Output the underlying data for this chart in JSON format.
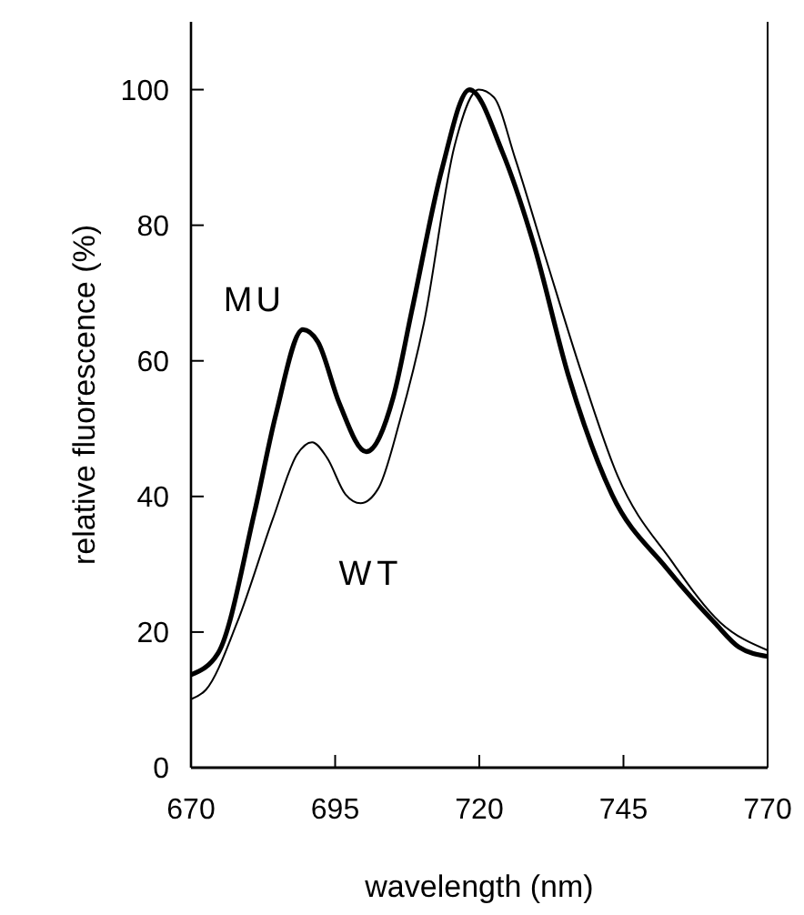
{
  "chart_data": {
    "type": "line",
    "xlabel": "wavelength (nm)",
    "ylabel": "relative fluorescence (%)",
    "xlim": [
      670,
      770
    ],
    "ylim": [
      0,
      110
    ],
    "xticks": [
      670,
      695,
      720,
      745,
      770
    ],
    "yticks": [
      0,
      20,
      40,
      60,
      80,
      100
    ],
    "grid": false,
    "marker": "none",
    "line_style": "solid",
    "series": [
      {
        "name": "MU",
        "color": "#000000",
        "x": [
          670,
          674.7,
          681,
          684.7,
          689.4,
          692,
          695.7,
          700.4,
          705.1,
          708.3,
          713.5,
          718.3,
          724,
          729.4,
          735.6,
          743,
          752.4,
          760.8,
          765,
          770
        ],
        "values": [
          13.7,
          16.9,
          37.6,
          52,
          64.6,
          62.8,
          53.8,
          46.6,
          54.7,
          67.4,
          88.2,
          100,
          90.8,
          77.3,
          57.4,
          40.3,
          29.5,
          21.4,
          17.8,
          16.4
        ]
      },
      {
        "name": "WT",
        "color": "#000000",
        "x": [
          670,
          672.6,
          678,
          684.2,
          688.4,
          691,
          693.6,
          696.8,
          699.4,
          702.5,
          706.2,
          710.4,
          715.7,
          719.9,
          722.5,
          726.2,
          731.4,
          737.7,
          744,
          753.4,
          761.8,
          770
        ],
        "values": [
          10.1,
          11.5,
          21.4,
          36.7,
          46.2,
          48,
          45.7,
          40.3,
          39,
          41.2,
          51.1,
          65.6,
          91.7,
          100,
          98.9,
          89.9,
          75.5,
          58.3,
          43,
          30.4,
          21.4,
          17.3
        ]
      }
    ]
  }
}
